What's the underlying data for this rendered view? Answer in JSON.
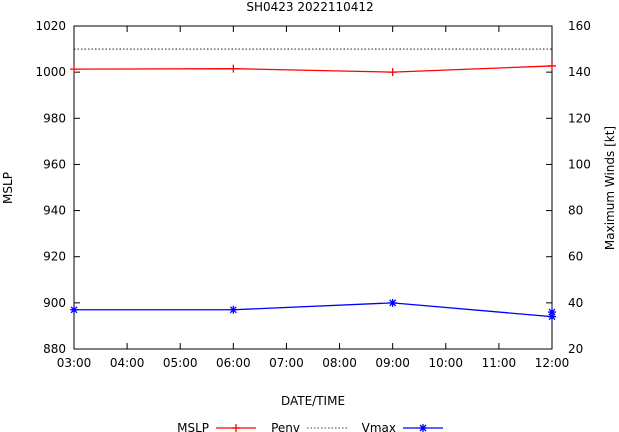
{
  "chart_data": {
    "type": "line",
    "title": "SH0423 2022110412",
    "xlabel": "DATE/TIME",
    "ylabel_left": "MSLP",
    "ylabel_right": "Maximum Winds [kt]",
    "x_tick_labels": [
      "03:00",
      "04:00",
      "05:00",
      "06:00",
      "07:00",
      "08:00",
      "09:00",
      "10:00",
      "11:00",
      "12:00"
    ],
    "x_range_hours": [
      3,
      12
    ],
    "y_left_range": [
      880,
      1020
    ],
    "y_left_ticks": [
      "880",
      "900",
      "920",
      "940",
      "960",
      "980",
      "1000",
      "1020"
    ],
    "y_right_range": [
      20,
      160
    ],
    "y_right_ticks": [
      "20",
      "40",
      "60",
      "80",
      "100",
      "120",
      "140",
      "160"
    ],
    "grid": false,
    "legend_position": "bottom",
    "series": [
      {
        "name": "MSLP",
        "axis": "left",
        "color": "#ff0000",
        "marker": "plus",
        "x": [
          3,
          6,
          9,
          12
        ],
        "values": [
          1001.3,
          1001.5,
          1000,
          1002.7
        ]
      },
      {
        "name": "Penv",
        "axis": "left",
        "color": "#000000",
        "style": "dotted",
        "x": [
          3,
          12
        ],
        "values": [
          1010,
          1010
        ]
      },
      {
        "name": "Vmax",
        "axis": "right",
        "color": "#0000ff",
        "marker": "star",
        "x": [
          3,
          6,
          9,
          12,
          12
        ],
        "values": [
          37,
          37,
          40,
          34,
          36
        ]
      }
    ]
  }
}
